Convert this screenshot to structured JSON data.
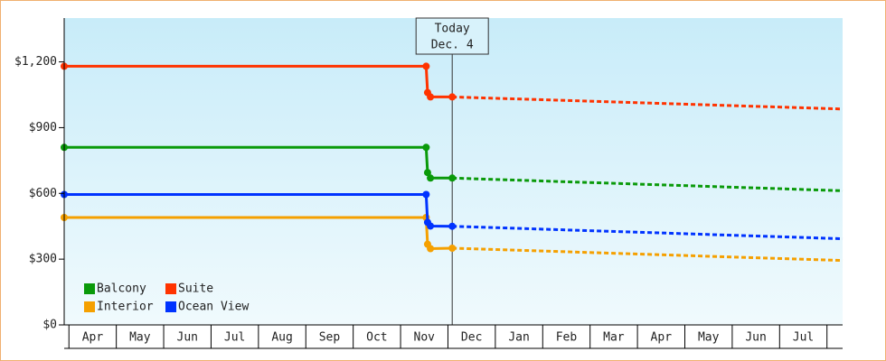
{
  "chart_data": {
    "type": "line",
    "xlim": [
      -0.1,
      16.33
    ],
    "xticks": [
      {
        "value": 0.5,
        "label": "Apr"
      },
      {
        "value": 1.5,
        "label": "May"
      },
      {
        "value": 2.5,
        "label": "Jun"
      },
      {
        "value": 3.5,
        "label": "Jul"
      },
      {
        "value": 4.5,
        "label": "Aug"
      },
      {
        "value": 5.5,
        "label": "Sep"
      },
      {
        "value": 6.5,
        "label": "Oct"
      },
      {
        "value": 7.5,
        "label": "Nov"
      },
      {
        "value": 8.5,
        "label": "Dec"
      },
      {
        "value": 9.5,
        "label": "Jan"
      },
      {
        "value": 10.5,
        "label": "Feb"
      },
      {
        "value": 11.5,
        "label": "Mar"
      },
      {
        "value": 12.5,
        "label": "Apr"
      },
      {
        "value": 13.5,
        "label": "May"
      },
      {
        "value": 14.5,
        "label": "Jun"
      },
      {
        "value": 15.5,
        "label": "Jul"
      }
    ],
    "ylim": [
      0,
      1400
    ],
    "yticks": [
      {
        "value": 0,
        "label": "$0"
      },
      {
        "value": 300,
        "label": "$300"
      },
      {
        "value": 600,
        "label": "$600"
      },
      {
        "value": 900,
        "label": "$900"
      },
      {
        "value": 1200,
        "label": "$1,200"
      }
    ],
    "annotation": {
      "lines": [
        "Today",
        "Dec. 4"
      ],
      "x": 8.09
    },
    "legend": "bottom-left",
    "series": [
      {
        "name": "Balcony",
        "color": "#0a9a0a",
        "x": [
          -0.1,
          7.54,
          7.57,
          7.63,
          8.09
        ],
        "values": [
          810,
          810,
          695,
          670,
          670
        ],
        "forecast_x": [
          8.09,
          16.33
        ],
        "forecast_values": [
          670,
          612
        ]
      },
      {
        "name": "Suite",
        "color": "#ff3300",
        "x": [
          -0.1,
          7.54,
          7.57,
          7.63,
          8.09
        ],
        "values": [
          1180,
          1180,
          1060,
          1040,
          1040
        ],
        "forecast_x": [
          8.09,
          16.33
        ],
        "forecast_values": [
          1040,
          985
        ]
      },
      {
        "name": "Interior",
        "color": "#f5a000",
        "x": [
          -0.1,
          7.54,
          7.57,
          7.63,
          8.09
        ],
        "values": [
          490,
          490,
          368,
          348,
          350
        ],
        "forecast_x": [
          8.09,
          16.33
        ],
        "forecast_values": [
          350,
          294
        ]
      },
      {
        "name": "Ocean View",
        "color": "#0033ff",
        "x": [
          -0.1,
          7.54,
          7.57,
          7.63,
          8.09
        ],
        "values": [
          595,
          595,
          468,
          451,
          450
        ],
        "forecast_x": [
          8.09,
          16.33
        ],
        "forecast_values": [
          450,
          393
        ]
      }
    ]
  }
}
